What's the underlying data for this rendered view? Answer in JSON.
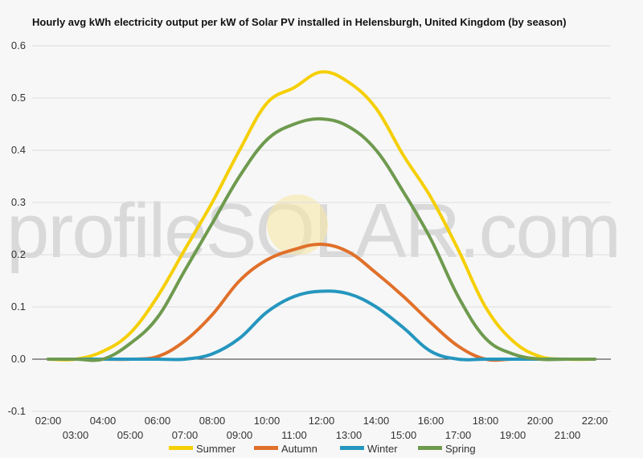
{
  "chart_data": {
    "type": "line",
    "title": "Hourly avg kWh electricity output per kW of Solar PV installed in Helensburgh, United Kingdom (by season)",
    "xlabel": "",
    "ylabel": "",
    "ylim": [
      -0.1,
      0.6
    ],
    "yticks": [
      "0.6",
      "0.5",
      "0.4",
      "0.3",
      "0.2",
      "0.1",
      "0.0",
      "-0.1"
    ],
    "ytick_values": [
      0.6,
      0.5,
      0.4,
      0.3,
      0.2,
      0.1,
      0.0,
      -0.1
    ],
    "grid": true,
    "legend_position": "bottom",
    "watermark": "profileSOLAR.com",
    "x": [
      "02:00",
      "03:00",
      "04:00",
      "05:00",
      "06:00",
      "07:00",
      "08:00",
      "09:00",
      "10:00",
      "11:00",
      "12:00",
      "13:00",
      "14:00",
      "15:00",
      "16:00",
      "17:00",
      "18:00",
      "19:00",
      "20:00",
      "21:00",
      "22:00"
    ],
    "series": [
      {
        "name": "Summer",
        "color": "#f5cf05",
        "values": [
          0,
          0,
          0.015,
          0.05,
          0.12,
          0.21,
          0.3,
          0.4,
          0.49,
          0.52,
          0.55,
          0.53,
          0.48,
          0.39,
          0.31,
          0.21,
          0.1,
          0.035,
          0.005,
          0,
          0
        ]
      },
      {
        "name": "Autumn",
        "color": "#e0702a",
        "values": [
          0,
          0,
          0,
          0,
          0.005,
          0.035,
          0.085,
          0.15,
          0.19,
          0.21,
          0.22,
          0.205,
          0.165,
          0.12,
          0.07,
          0.025,
          0,
          0,
          0,
          0,
          0
        ]
      },
      {
        "name": "Winter",
        "color": "#2596be",
        "values": [
          0,
          0,
          0,
          0,
          0,
          0,
          0.01,
          0.04,
          0.09,
          0.12,
          0.13,
          0.125,
          0.1,
          0.06,
          0.015,
          0,
          0,
          0,
          0,
          0,
          0
        ]
      },
      {
        "name": "Spring",
        "color": "#6e9a4e",
        "values": [
          0,
          0,
          0,
          0.03,
          0.08,
          0.17,
          0.26,
          0.35,
          0.42,
          0.45,
          0.46,
          0.445,
          0.4,
          0.32,
          0.23,
          0.12,
          0.04,
          0.01,
          0,
          0,
          0
        ]
      }
    ]
  }
}
